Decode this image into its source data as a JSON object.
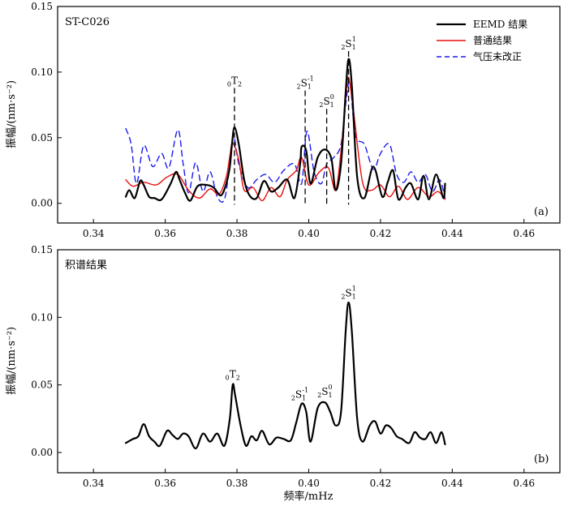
{
  "chart_data": [
    {
      "type": "line",
      "station_label": "ST-C026",
      "panel_label": "(a)",
      "ylabel": "振幅/(nm·s⁻²)",
      "xlim": [
        0.33,
        0.47
      ],
      "ylim": [
        -0.015,
        0.15
      ],
      "xticks": [
        0.34,
        0.36,
        0.38,
        0.4,
        0.42,
        0.44,
        0.46
      ],
      "xtick_labels": [
        "0.34",
        "0.36",
        "0.38",
        "0.40",
        "0.42",
        "0.44",
        "0.46"
      ],
      "yticks": [
        0.0,
        0.05,
        0.1,
        0.15
      ],
      "ytick_labels": [
        "0.00",
        "0.05",
        "0.10",
        "0.15"
      ],
      "legend": [
        "EEMD 结果",
        "普通结果",
        "气压未改正"
      ],
      "mode_lines": [
        {
          "x": 0.3793,
          "top": 0.088,
          "prefix": "0",
          "letter": "T",
          "sub": "2",
          "sup": ""
        },
        {
          "x": 0.399,
          "top": 0.086,
          "prefix": "2",
          "letter": "S",
          "sub": "1",
          "sup": "-1"
        },
        {
          "x": 0.405,
          "top": 0.072,
          "prefix": "2",
          "letter": "S",
          "sub": "1",
          "sup": "0"
        },
        {
          "x": 0.4111,
          "top": 0.116,
          "prefix": "2",
          "letter": "S",
          "sub": "1",
          "sup": "1"
        }
      ],
      "series": [
        {
          "name": "EEMD 结果",
          "color": "#000000",
          "style": "solid",
          "width": 2.2,
          "x": [
            0.349,
            0.35,
            0.3515,
            0.353,
            0.354,
            0.3555,
            0.357,
            0.359,
            0.3615,
            0.363,
            0.364,
            0.3655,
            0.367,
            0.369,
            0.3715,
            0.3735,
            0.3755,
            0.377,
            0.378,
            0.3786,
            0.3793,
            0.3805,
            0.382,
            0.3835,
            0.3855,
            0.3875,
            0.3895,
            0.3915,
            0.394,
            0.396,
            0.3976,
            0.398,
            0.3993,
            0.4005,
            0.4025,
            0.4045,
            0.4063,
            0.4075,
            0.409,
            0.4103,
            0.4111,
            0.412,
            0.4135,
            0.4155,
            0.418,
            0.4205,
            0.422,
            0.4235,
            0.425,
            0.427,
            0.4285,
            0.4305,
            0.432,
            0.4335,
            0.4355,
            0.4375,
            0.438
          ],
          "y": [
            0.005,
            0.01,
            0.004,
            0.017,
            0.014,
            0.005,
            0.004,
            0.003,
            0.015,
            0.024,
            0.018,
            0.008,
            0.002,
            0.013,
            0.014,
            0.012,
            0.006,
            0.015,
            0.028,
            0.045,
            0.058,
            0.045,
            0.018,
            0.006,
            0.004,
            0.017,
            0.009,
            0.012,
            0.018,
            0.004,
            0.03,
            0.043,
            0.04,
            0.015,
            0.035,
            0.041,
            0.034,
            0.01,
            0.03,
            0.085,
            0.11,
            0.09,
            0.02,
            0.004,
            0.028,
            0.005,
            0.016,
            0.025,
            0.003,
            0.012,
            0.015,
            0.003,
            0.021,
            0.003,
            0.022,
            0.004,
            0.015
          ]
        },
        {
          "name": "普通结果",
          "color": "#e8100f",
          "style": "solid",
          "width": 1.4,
          "x": [
            0.349,
            0.351,
            0.354,
            0.3575,
            0.3605,
            0.3635,
            0.3665,
            0.3695,
            0.3725,
            0.375,
            0.377,
            0.378,
            0.3788,
            0.3805,
            0.382,
            0.3845,
            0.387,
            0.3895,
            0.392,
            0.394,
            0.3965,
            0.398,
            0.4,
            0.403,
            0.4055,
            0.4075,
            0.409,
            0.4103,
            0.4111,
            0.4125,
            0.415,
            0.4175,
            0.42,
            0.4225,
            0.425,
            0.4275,
            0.4305,
            0.4335,
            0.436,
            0.438
          ],
          "y": [
            0.018,
            0.013,
            0.016,
            0.014,
            0.02,
            0.022,
            0.01,
            0.004,
            0.011,
            0.007,
            0.02,
            0.036,
            0.046,
            0.033,
            0.01,
            0.012,
            0.002,
            0.012,
            0.005,
            0.018,
            0.025,
            0.035,
            0.014,
            0.024,
            0.027,
            0.01,
            0.04,
            0.08,
            0.096,
            0.07,
            0.016,
            0.01,
            0.014,
            0.005,
            0.013,
            0.003,
            0.012,
            0.005,
            0.009,
            0.003
          ]
        },
        {
          "name": "气压未改正",
          "color": "#1a1af0",
          "style": "dashed",
          "width": 1.4,
          "x": [
            0.349,
            0.3505,
            0.352,
            0.354,
            0.3565,
            0.359,
            0.361,
            0.3635,
            0.365,
            0.3665,
            0.3685,
            0.3705,
            0.3725,
            0.3745,
            0.3765,
            0.378,
            0.379,
            0.3805,
            0.383,
            0.3855,
            0.388,
            0.3905,
            0.393,
            0.396,
            0.398,
            0.3995,
            0.4015,
            0.4035,
            0.405,
            0.407,
            0.409,
            0.4105,
            0.4115,
            0.413,
            0.4155,
            0.418,
            0.42,
            0.4225,
            0.4245,
            0.4265,
            0.4285,
            0.4305,
            0.4325,
            0.4345,
            0.4365,
            0.438
          ],
          "y": [
            0.057,
            0.045,
            0.015,
            0.044,
            0.028,
            0.038,
            0.027,
            0.056,
            0.03,
            0.008,
            0.031,
            0.009,
            0.024,
            0.005,
            0.003,
            0.03,
            0.052,
            0.03,
            0.012,
            0.018,
            0.022,
            0.016,
            0.025,
            0.03,
            0.015,
            0.055,
            0.024,
            0.015,
            0.03,
            0.035,
            0.045,
            0.08,
            0.092,
            0.052,
            0.045,
            0.026,
            0.038,
            0.045,
            0.022,
            0.016,
            0.024,
            0.016,
            0.022,
            0.009,
            0.018,
            0.004
          ]
        }
      ]
    },
    {
      "type": "line",
      "title": "积谱结果",
      "panel_label": "(b)",
      "ylabel": "振幅/(nm·s⁻²)",
      "xlabel": "频率/mHz",
      "xlim": [
        0.33,
        0.47
      ],
      "ylim": [
        -0.015,
        0.15
      ],
      "xticks": [
        0.34,
        0.36,
        0.38,
        0.4,
        0.42,
        0.44,
        0.46
      ],
      "xtick_labels": [
        "0.34",
        "0.36",
        "0.38",
        "0.40",
        "0.42",
        "0.44",
        "0.46"
      ],
      "yticks": [
        0.0,
        0.05,
        0.1,
        0.15
      ],
      "ytick_labels": [
        "0.00",
        "0.05",
        "0.10",
        "0.15"
      ],
      "peak_labels": [
        {
          "x": 0.3788,
          "y": 0.052,
          "prefix": "0",
          "letter": "T",
          "sub": "2",
          "sup": ""
        },
        {
          "x": 0.3975,
          "y": 0.037,
          "prefix": "2",
          "letter": "S",
          "sub": "1",
          "sup": "-1"
        },
        {
          "x": 0.4045,
          "y": 0.039,
          "prefix": "2",
          "letter": "S",
          "sub": "1",
          "sup": "0"
        },
        {
          "x": 0.4111,
          "y": 0.112,
          "prefix": "2",
          "letter": "S",
          "sub": "1",
          "sup": "1"
        }
      ],
      "series": [
        {
          "name": "积谱结果",
          "color": "#000000",
          "style": "solid",
          "width": 2.2,
          "x": [
            0.349,
            0.351,
            0.3525,
            0.354,
            0.3555,
            0.357,
            0.3585,
            0.3605,
            0.362,
            0.3635,
            0.365,
            0.3665,
            0.3685,
            0.3705,
            0.3725,
            0.3745,
            0.3765,
            0.378,
            0.3788,
            0.3795,
            0.381,
            0.3825,
            0.384,
            0.3855,
            0.387,
            0.389,
            0.391,
            0.393,
            0.395,
            0.3965,
            0.398,
            0.3993,
            0.4005,
            0.4025,
            0.4045,
            0.406,
            0.4075,
            0.409,
            0.4103,
            0.4111,
            0.412,
            0.4135,
            0.415,
            0.417,
            0.4185,
            0.42,
            0.4215,
            0.423,
            0.4245,
            0.426,
            0.428,
            0.4295,
            0.431,
            0.4325,
            0.434,
            0.4355,
            0.437,
            0.438
          ],
          "y": [
            0.007,
            0.01,
            0.012,
            0.021,
            0.012,
            0.008,
            0.005,
            0.016,
            0.013,
            0.01,
            0.014,
            0.012,
            0.003,
            0.014,
            0.008,
            0.014,
            0.005,
            0.025,
            0.05,
            0.042,
            0.02,
            0.005,
            0.012,
            0.009,
            0.016,
            0.006,
            0.011,
            0.01,
            0.009,
            0.022,
            0.036,
            0.03,
            0.008,
            0.033,
            0.037,
            0.03,
            0.02,
            0.03,
            0.09,
            0.111,
            0.09,
            0.025,
            0.008,
            0.02,
            0.023,
            0.014,
            0.02,
            0.018,
            0.012,
            0.01,
            0.007,
            0.015,
            0.011,
            0.01,
            0.015,
            0.007,
            0.015,
            0.006
          ]
        }
      ]
    }
  ]
}
